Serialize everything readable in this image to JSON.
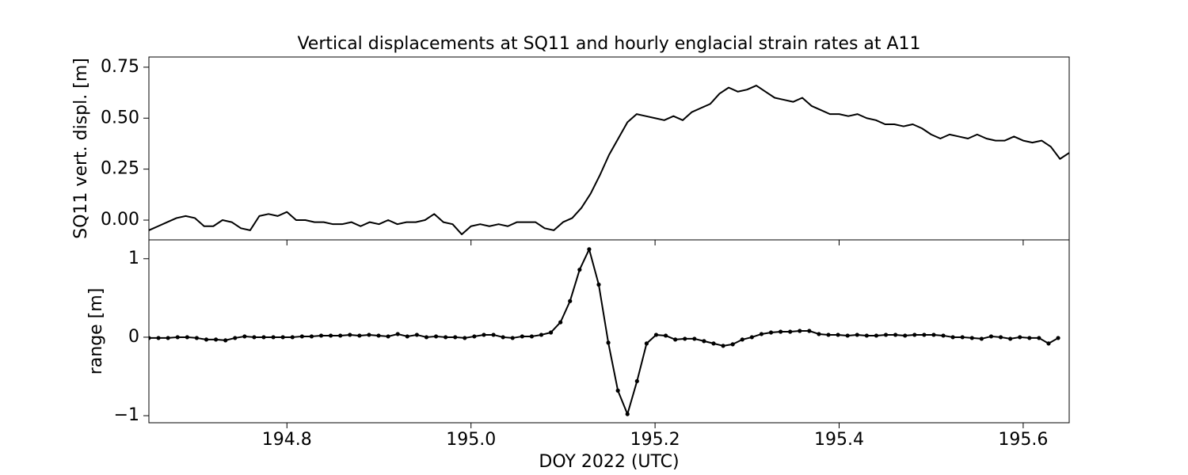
{
  "chart_data": [
    {
      "type": "line",
      "title": "Vertical displacements at SQ11 and hourly englacial strain rates at A11",
      "y_label": "SQ11 vert. displ. [m]",
      "x": [
        194.65,
        194.66,
        194.67,
        194.68,
        194.69,
        194.7,
        194.71,
        194.72,
        194.73,
        194.74,
        194.75,
        194.76,
        194.77,
        194.78,
        194.79,
        194.8,
        194.81,
        194.82,
        194.83,
        194.84,
        194.85,
        194.86,
        194.87,
        194.88,
        194.89,
        194.9,
        194.91,
        194.92,
        194.93,
        194.94,
        194.95,
        194.96,
        194.97,
        194.98,
        194.99,
        195.0,
        195.01,
        195.02,
        195.03,
        195.04,
        195.05,
        195.06,
        195.07,
        195.08,
        195.09,
        195.1,
        195.11,
        195.12,
        195.13,
        195.14,
        195.15,
        195.16,
        195.17,
        195.18,
        195.19,
        195.2,
        195.21,
        195.22,
        195.23,
        195.24,
        195.25,
        195.26,
        195.27,
        195.28,
        195.29,
        195.3,
        195.31,
        195.32,
        195.33,
        195.34,
        195.35,
        195.36,
        195.37,
        195.38,
        195.39,
        195.4,
        195.41,
        195.42,
        195.43,
        195.44,
        195.45,
        195.46,
        195.47,
        195.48,
        195.49,
        195.5,
        195.51,
        195.52,
        195.53,
        195.54,
        195.55,
        195.56,
        195.57,
        195.58,
        195.59,
        195.6,
        195.61,
        195.62,
        195.63,
        195.64,
        195.65
      ],
      "series": [
        {
          "color": "#000000",
          "values": [
            -0.05,
            -0.03,
            -0.01,
            0.01,
            0.02,
            0.01,
            -0.03,
            -0.03,
            0.0,
            -0.01,
            -0.04,
            -0.05,
            0.02,
            0.03,
            0.02,
            0.04,
            0.0,
            0.0,
            -0.01,
            -0.01,
            -0.02,
            -0.02,
            -0.01,
            -0.03,
            -0.01,
            -0.02,
            0.0,
            -0.02,
            -0.01,
            -0.01,
            0.0,
            0.03,
            -0.01,
            -0.02,
            -0.07,
            -0.03,
            -0.02,
            -0.03,
            -0.02,
            -0.03,
            -0.01,
            -0.01,
            -0.01,
            -0.04,
            -0.05,
            -0.01,
            0.01,
            0.06,
            0.13,
            0.22,
            0.32,
            0.4,
            0.48,
            0.52,
            0.51,
            0.5,
            0.49,
            0.51,
            0.49,
            0.53,
            0.55,
            0.57,
            0.62,
            0.65,
            0.63,
            0.64,
            0.66,
            0.63,
            0.6,
            0.59,
            0.58,
            0.6,
            0.56,
            0.54,
            0.52,
            0.52,
            0.51,
            0.52,
            0.5,
            0.49,
            0.47,
            0.47,
            0.46,
            0.47,
            0.45,
            0.42,
            0.4,
            0.42,
            0.41,
            0.4,
            0.42,
            0.4,
            0.39,
            0.39,
            0.41,
            0.39,
            0.38,
            0.39,
            0.36,
            0.3,
            0.33
          ]
        }
      ],
      "xlim": [
        194.65,
        195.65
      ],
      "xticks": [
        194.8,
        195,
        195.2,
        195.4,
        195.6
      ],
      "ylim": [
        -0.097,
        0.8
      ],
      "yticks": [
        {
          "value": 0,
          "label": "0.00"
        },
        {
          "value": 0.25,
          "label": "0.25"
        },
        {
          "value": 0.5,
          "label": "0.50"
        },
        {
          "value": 0.75,
          "label": "0.75"
        }
      ]
    },
    {
      "type": "line",
      "y_label": "range [m]",
      "x_label": "DOY 2022 (UTC)",
      "markers": true,
      "x": [
        194.65,
        194.6604,
        194.6708,
        194.6812,
        194.6916,
        194.702,
        194.7124,
        194.7228,
        194.7332,
        194.7436,
        194.754,
        194.7644,
        194.7748,
        194.7852,
        194.7956,
        194.806,
        194.8164,
        194.8268,
        194.8372,
        194.8476,
        194.858,
        194.8684,
        194.8788,
        194.8892,
        194.8996,
        194.91,
        194.9204,
        194.9308,
        194.9412,
        194.9516,
        194.962,
        194.9724,
        194.9828,
        194.9932,
        195.0036,
        195.014,
        195.0244,
        195.0348,
        195.0452,
        195.0556,
        195.066,
        195.0764,
        195.0868,
        195.0972,
        195.1076,
        195.118,
        195.1284,
        195.1388,
        195.1492,
        195.1596,
        195.17,
        195.1804,
        195.1908,
        195.2012,
        195.2116,
        195.222,
        195.2324,
        195.2428,
        195.2532,
        195.2636,
        195.274,
        195.2844,
        195.2948,
        195.3052,
        195.3156,
        195.326,
        195.3364,
        195.3468,
        195.3572,
        195.3676,
        195.378,
        195.3884,
        195.3988,
        195.4092,
        195.4196,
        195.43,
        195.4404,
        195.4508,
        195.4612,
        195.4716,
        195.482,
        195.4924,
        195.5028,
        195.5132,
        195.5236,
        195.534,
        195.5444,
        195.5548,
        195.5652,
        195.5756,
        195.586,
        195.5964,
        195.6068,
        195.6172,
        195.6276,
        195.638
      ],
      "series": [
        {
          "color": "#000000",
          "values": [
            -0.01,
            -0.01,
            -0.01,
            0.0,
            0.0,
            -0.01,
            -0.03,
            -0.03,
            -0.04,
            -0.01,
            0.01,
            0.0,
            0.0,
            0.0,
            0.0,
            0.0,
            0.01,
            0.01,
            0.02,
            0.02,
            0.02,
            0.03,
            0.02,
            0.03,
            0.02,
            0.01,
            0.04,
            0.01,
            0.03,
            0.0,
            0.01,
            0.0,
            0.0,
            -0.01,
            0.01,
            0.03,
            0.03,
            0.0,
            -0.01,
            0.01,
            0.01,
            0.03,
            0.06,
            0.19,
            0.46,
            0.86,
            1.12,
            0.67,
            -0.07,
            -0.68,
            -0.98,
            -0.56,
            -0.08,
            0.03,
            0.02,
            -0.03,
            -0.02,
            -0.02,
            -0.05,
            -0.08,
            -0.11,
            -0.09,
            -0.03,
            0.0,
            0.04,
            0.06,
            0.07,
            0.07,
            0.08,
            0.08,
            0.04,
            0.03,
            0.03,
            0.02,
            0.03,
            0.02,
            0.02,
            0.03,
            0.03,
            0.02,
            0.03,
            0.03,
            0.03,
            0.02,
            0.0,
            0.0,
            -0.01,
            -0.02,
            0.01,
            0.0,
            -0.02,
            0.0,
            -0.01,
            -0.01,
            -0.08,
            -0.01
          ]
        }
      ],
      "xlim": [
        194.65,
        195.65
      ],
      "xticks": [
        194.8,
        {
          "value": 195,
          "label": "195.0"
        },
        195.2,
        195.4,
        195.6
      ],
      "ylim": [
        -1.09,
        1.24
      ],
      "yticks": [
        {
          "value": -1,
          "label": "−1"
        },
        0,
        1
      ]
    }
  ]
}
